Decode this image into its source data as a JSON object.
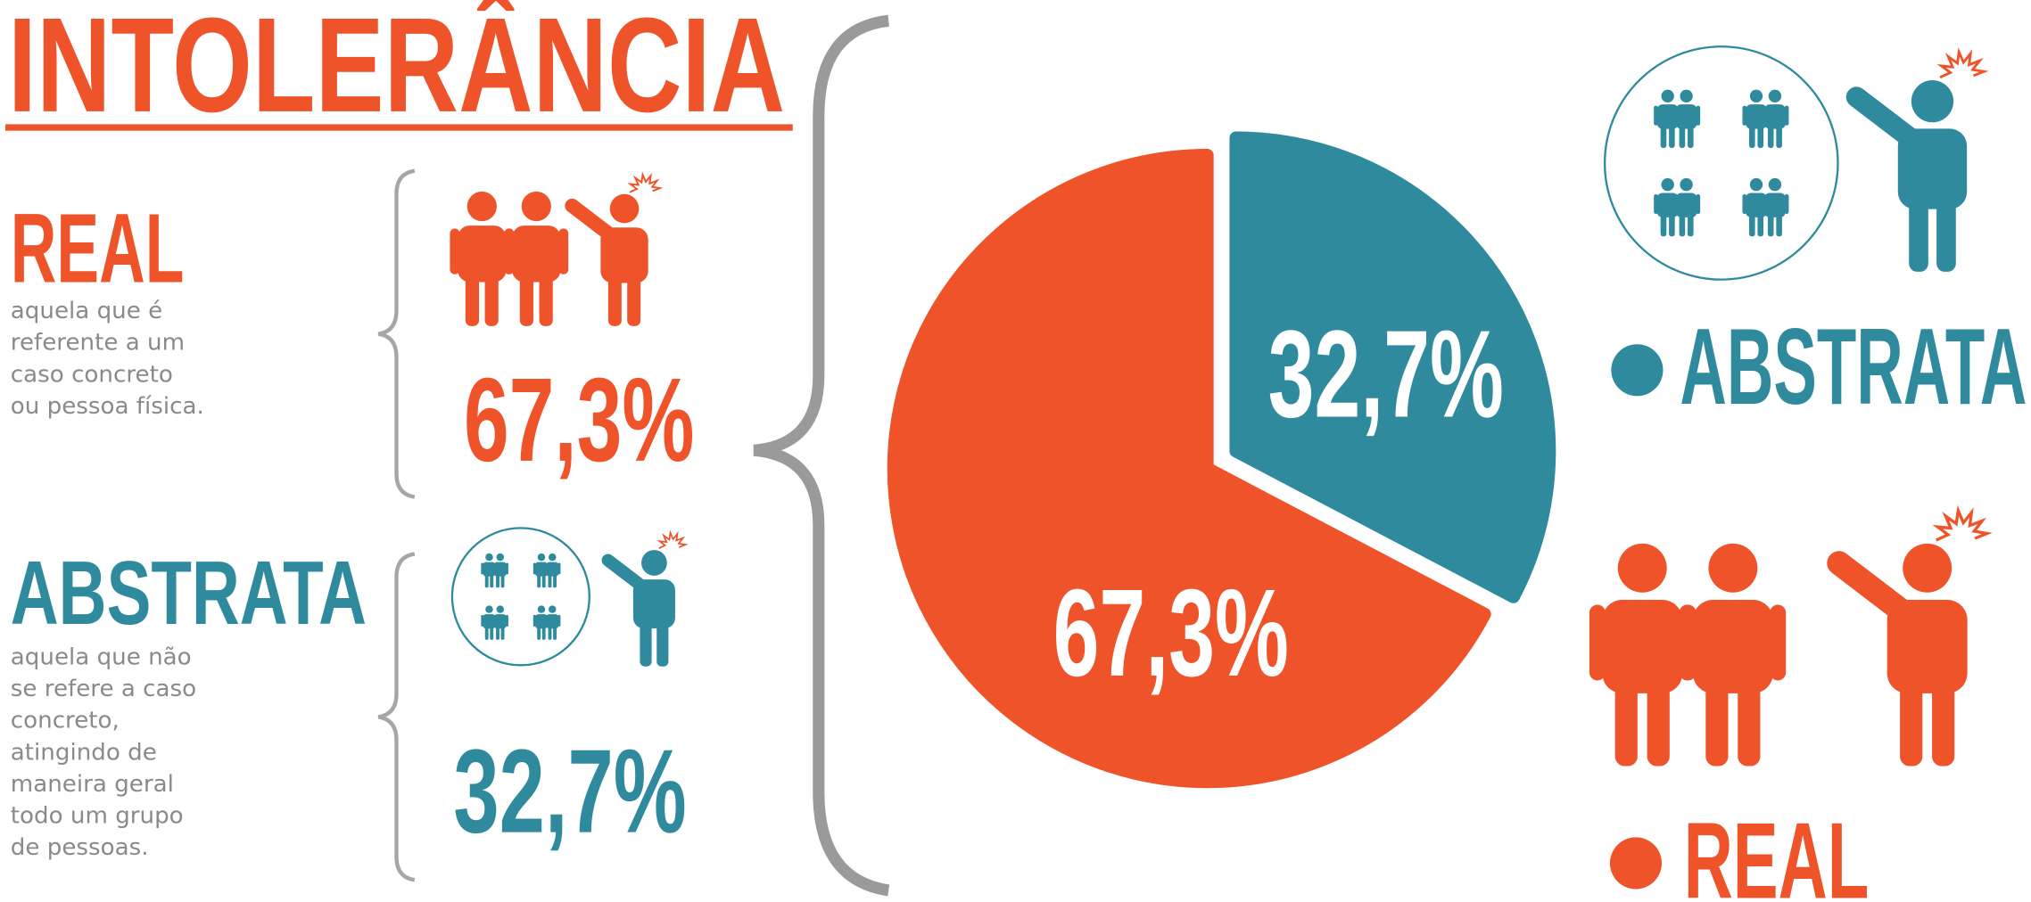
{
  "chart_data": {
    "type": "pie",
    "title": "INTOLERÂNCIA",
    "categories": [
      "REAL",
      "ABSTRATA"
    ],
    "values": [
      67.3,
      32.7
    ],
    "value_labels": [
      "67,3%",
      "32,7%"
    ],
    "colors": [
      "#ef532a",
      "#2f8a9e"
    ],
    "descriptions": [
      [
        "aquela que é",
        "referente a um",
        "caso concreto",
        "ou pessoa física."
      ],
      [
        "aquela que não",
        "se refere a caso",
        "concreto,",
        "atingindo de",
        "maneira geral",
        "todo um grupo",
        "de pessoas."
      ]
    ],
    "legend_position": "right"
  }
}
